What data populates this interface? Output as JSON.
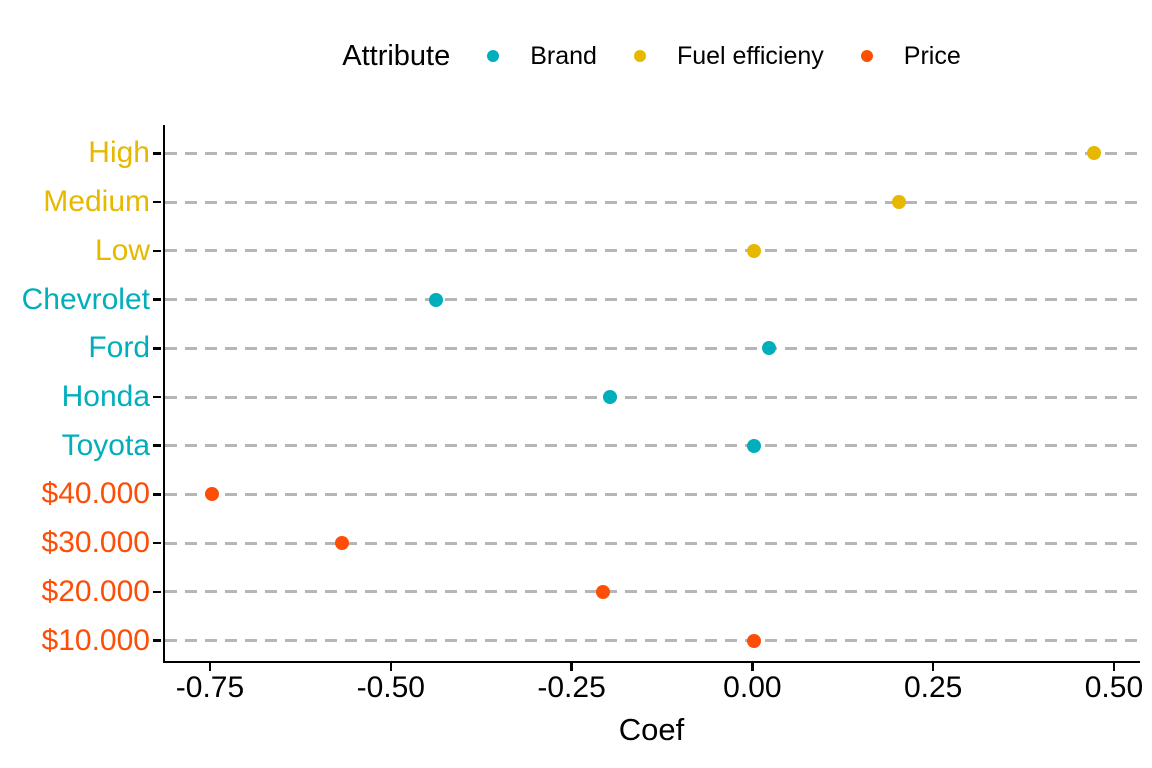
{
  "legend": {
    "title": "Attribute"
  },
  "colors": {
    "brand": "#00AFBB",
    "fuel_efficiency": "#E7B800",
    "price": "#FC4E07",
    "grid": "#B6B6B6",
    "axis": "#000000"
  },
  "chart_data": {
    "type": "scatter",
    "subtype": "cleveland-dot-plot",
    "title": "",
    "xlabel": "Coef",
    "ylabel": "",
    "legend_title": "Attribute",
    "legend_position": "top",
    "legend_entries": [
      "Brand",
      "Fuel efficieny",
      "Price"
    ],
    "xlim": [
      -0.815,
      0.536
    ],
    "x_ticks": [
      -0.75,
      -0.5,
      -0.25,
      0,
      0.25,
      0.5
    ],
    "x_tick_labels": [
      "-0.75",
      "-0.50",
      "-0.25",
      "0.00",
      "0.25",
      "0.50"
    ],
    "grid": "horizontal dashed gray lines per category",
    "category_order": [
      "High",
      "Medium",
      "Low",
      "Chevrolet",
      "Ford",
      "Honda",
      "Toyota",
      "$40.000",
      "$30.000",
      "$20.000",
      "$10.000"
    ],
    "series": [
      {
        "name": "Brand",
        "color": "#00AFBB",
        "points": [
          {
            "category": "Chevrolet",
            "value": -0.44
          },
          {
            "category": "Ford",
            "value": 0.02
          },
          {
            "category": "Honda",
            "value": -0.2
          },
          {
            "category": "Toyota",
            "value": 0.0
          }
        ]
      },
      {
        "name": "Fuel efficieny",
        "color": "#E7B800",
        "points": [
          {
            "category": "High",
            "value": 0.47
          },
          {
            "category": "Medium",
            "value": 0.2
          },
          {
            "category": "Low",
            "value": 0.0
          }
        ]
      },
      {
        "name": "Price",
        "color": "#FC4E07",
        "points": [
          {
            "category": "$40.000",
            "value": -0.75
          },
          {
            "category": "$30.000",
            "value": -0.57
          },
          {
            "category": "$20.000",
            "value": -0.21
          },
          {
            "category": "$10.000",
            "value": 0.0
          }
        ]
      }
    ]
  }
}
